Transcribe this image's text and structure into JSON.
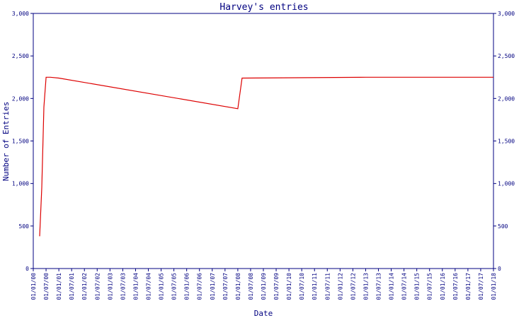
{
  "chart_data": {
    "type": "line",
    "title": "Harvey's entries",
    "xlabel": "Date",
    "ylabel": "Number of Entries",
    "ylim": [
      0,
      3000
    ],
    "y_ticks": [
      0,
      500,
      1000,
      1500,
      2000,
      2500,
      3000
    ],
    "y_tick_labels": [
      "0",
      "500",
      "1,000",
      "1,500",
      "2,000",
      "2,500",
      "3,000"
    ],
    "x_tick_labels": [
      "01/01/00",
      "01/07/00",
      "01/01/01",
      "01/07/01",
      "01/01/02",
      "01/07/02",
      "01/01/03",
      "01/07/03",
      "01/01/04",
      "01/07/04",
      "01/01/05",
      "01/07/05",
      "01/01/06",
      "01/07/06",
      "01/01/07",
      "01/07/07",
      "01/01/08",
      "01/07/08",
      "01/01/09",
      "01/07/09",
      "01/01/10",
      "01/07/10",
      "01/01/11",
      "01/07/11",
      "01/01/12",
      "01/07/12",
      "01/01/13",
      "01/07/13",
      "01/01/14",
      "01/07/14",
      "01/01/15",
      "01/07/15",
      "01/01/16",
      "01/07/16",
      "01/01/17",
      "01/07/17",
      "01/01/18"
    ],
    "grid": false,
    "legend": "none",
    "colors": {
      "axis": "#000080",
      "series": "#dd0000",
      "background": "#ffffff"
    },
    "series": [
      {
        "x": [
          "01/04/00",
          "01/05/00",
          "01/06/00",
          "01/07/00",
          "01/09/00",
          "01/01/01",
          "01/01/08",
          "01/03/08",
          "01/01/13",
          "01/01/18"
        ],
        "values": [
          380,
          950,
          1900,
          2250,
          2250,
          2240,
          1880,
          2240,
          2250,
          2250
        ]
      }
    ]
  }
}
